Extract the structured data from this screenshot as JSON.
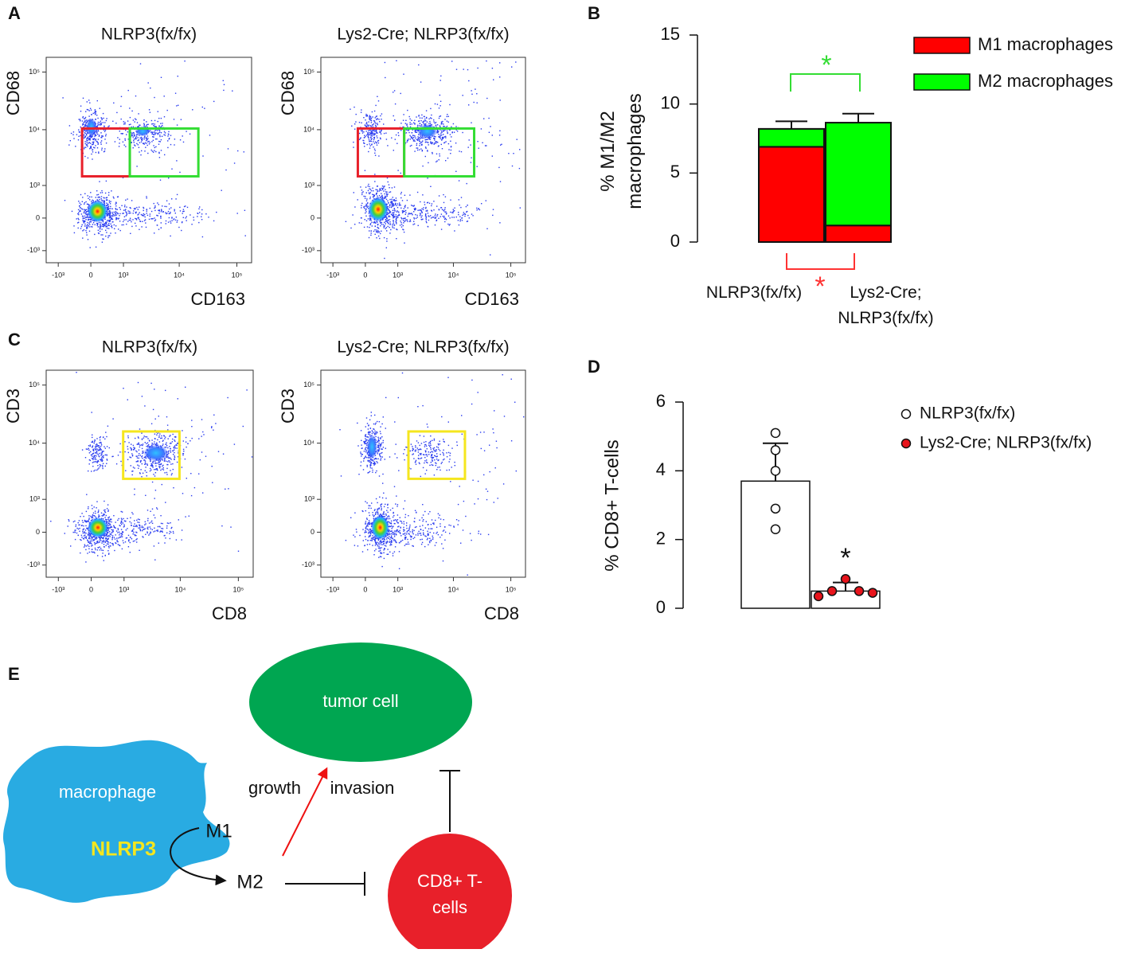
{
  "panel_labels": [
    "A",
    "B",
    "C",
    "D",
    "E"
  ],
  "chart_data": [
    {
      "type": "flow",
      "title": "NLRP3(fx/fx)",
      "xlabel": "CD163",
      "ylabel": "CD68",
      "scale": "biexponential",
      "xlim": [
        -1700,
        180000
      ],
      "ylim": [
        -1700,
        180000
      ],
      "xticks": [
        {
          "value": -1000,
          "label": "-10³"
        },
        0,
        {
          "value": 1000,
          "label": "10³"
        },
        {
          "value": 10000,
          "label": "10⁴"
        },
        {
          "value": 100000,
          "label": "10⁵"
        }
      ],
      "yticks": [
        {
          "value": -1000,
          "label": "-10³"
        },
        0,
        {
          "value": 1000,
          "label": "10³"
        },
        {
          "value": 10000,
          "label": "10⁴"
        },
        {
          "value": 100000,
          "label": "10⁵"
        }
      ],
      "gates": [
        {
          "color": "#e8202a",
          "x": [
            -210,
            1330
          ],
          "y": [
            1500,
            10500
          ]
        },
        {
          "color": "#33dd33",
          "x": [
            1330,
            21500
          ],
          "y": [
            1500,
            10500
          ]
        }
      ]
    },
    {
      "type": "flow",
      "title": "Lys2-Cre; NLRP3(fx/fx)",
      "xlabel": "CD163",
      "ylabel": "CD68",
      "scale": "biexponential",
      "xlim": [
        -1700,
        180000
      ],
      "ylim": [
        -1700,
        180000
      ],
      "xticks": [
        {
          "value": -1000,
          "label": "-10³"
        },
        0,
        {
          "value": 1000,
          "label": "10³"
        },
        {
          "value": 10000,
          "label": "10⁴"
        },
        {
          "value": 100000,
          "label": "10⁵"
        }
      ],
      "yticks": [
        {
          "value": -1000,
          "label": "-10³"
        },
        0,
        {
          "value": 1000,
          "label": "10³"
        },
        {
          "value": 10000,
          "label": "10⁴"
        },
        {
          "value": 100000,
          "label": "10⁵"
        }
      ],
      "gates": [
        {
          "color": "#e8202a",
          "x": [
            -180,
            1330
          ],
          "y": [
            1500,
            10500
          ]
        },
        {
          "color": "#33dd33",
          "x": [
            1330,
            23000
          ],
          "y": [
            1500,
            10500
          ]
        }
      ]
    },
    {
      "type": "flow",
      "title": "NLRP3(fx/fx)",
      "xlabel": "CD8",
      "ylabel": "CD3",
      "scale": "biexponential",
      "xlim": [
        -1700,
        180000
      ],
      "ylim": [
        -1700,
        180000
      ],
      "xticks": [
        {
          "value": -1000,
          "label": "-10³"
        },
        0,
        {
          "value": 1000,
          "label": "10³"
        },
        {
          "value": 10000,
          "label": "10⁴"
        },
        {
          "value": 100000,
          "label": "10⁵"
        }
      ],
      "yticks": [
        {
          "value": -1000,
          "label": "-10³"
        },
        0,
        {
          "value": 1000,
          "label": "10³"
        },
        {
          "value": 10000,
          "label": "10⁴"
        },
        {
          "value": 100000,
          "label": "10⁵"
        }
      ],
      "gates": [
        {
          "color": "#f5e61e",
          "x": [
            960,
            9700
          ],
          "y": [
            2400,
            15900
          ]
        }
      ]
    },
    {
      "type": "flow",
      "title": "Lys2-Cre; NLRP3(fx/fx)",
      "xlabel": "CD8",
      "ylabel": "CD3",
      "scale": "biexponential",
      "xlim": [
        -1700,
        180000
      ],
      "ylim": [
        -1700,
        180000
      ],
      "xticks": [
        {
          "value": -1000,
          "label": "-10³"
        },
        0,
        {
          "value": 1000,
          "label": "10³"
        },
        {
          "value": 10000,
          "label": "10⁴"
        },
        {
          "value": 100000,
          "label": "10⁵"
        }
      ],
      "yticks": [
        {
          "value": -1000,
          "label": "-10³"
        },
        0,
        {
          "value": 1000,
          "label": "10³"
        },
        {
          "value": 10000,
          "label": "10⁴"
        },
        {
          "value": 100000,
          "label": "10⁵"
        }
      ],
      "gates": [
        {
          "color": "#f5e61e",
          "x": [
            1600,
            15900
          ],
          "y": [
            2400,
            15900
          ]
        }
      ]
    },
    {
      "type": "stacked_bar",
      "ylabel": "% M1/M2 macrophages",
      "categories": [
        "NLRP3(fx/fx)",
        "Lys2-Cre; NLRP3(fx/fx)"
      ],
      "series": [
        {
          "name": "M1 macrophages",
          "color": "#ff0000",
          "values": [
            6.9,
            1.2
          ],
          "errors": [
            1.0,
            0.5
          ]
        },
        {
          "name": "M2 macrophages",
          "color": "#00ff00",
          "values": [
            1.3,
            7.45
          ],
          "errors": [
            0.55,
            0.65
          ]
        }
      ],
      "ylim": [
        0,
        15
      ],
      "yticks": [
        0,
        5,
        10,
        15
      ],
      "annotations": [
        {
          "text": "*",
          "color": "#33dd33"
        },
        {
          "text": "*",
          "color": "#ff3333"
        }
      ]
    },
    {
      "type": "bar_points",
      "ylabel": "% CD8+ T-cells",
      "series": [
        {
          "name": "NLRP3(fx/fx)",
          "color": "#ffffff",
          "value": 3.7,
          "error": 1.1,
          "points": [
            5.1,
            4.6,
            4.0,
            2.9,
            2.3
          ]
        },
        {
          "name": "Lys2-Cre; NLRP3(fx/fx)",
          "color": "#e8141c",
          "value": 0.5,
          "error": 0.25,
          "points": [
            0.35,
            0.5,
            0.85,
            0.5,
            0.45
          ]
        }
      ],
      "ylim": [
        0,
        6
      ],
      "yticks": [
        0,
        2,
        4,
        6
      ],
      "annotations": [
        {
          "text": "*",
          "color": "#111111"
        }
      ]
    }
  ],
  "diagram": {
    "tumor": "tumor cell",
    "macrophage": "macrophage",
    "gene": "NLRP3",
    "m1": "M1",
    "m2": "M2",
    "growth": "growth",
    "invasion": "invasion",
    "tcell": "CD8+ T-cells"
  }
}
